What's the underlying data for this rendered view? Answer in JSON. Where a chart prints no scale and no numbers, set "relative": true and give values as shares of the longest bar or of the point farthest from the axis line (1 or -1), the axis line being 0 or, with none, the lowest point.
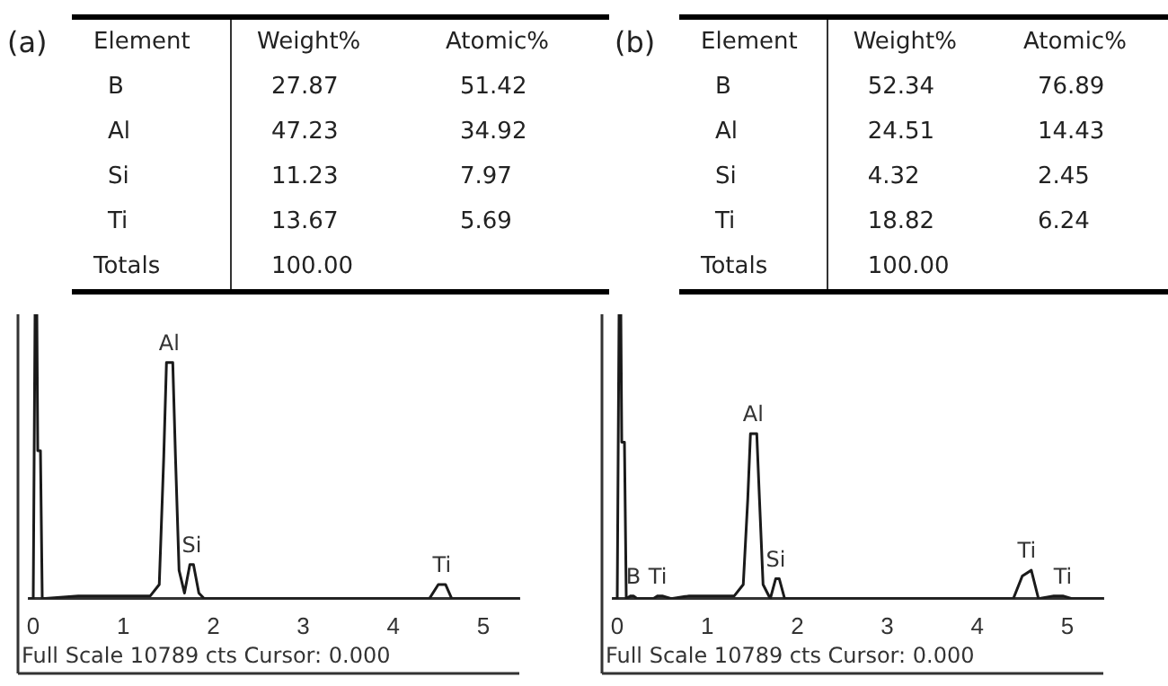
{
  "chart_data": [
    {
      "type": "other",
      "title": "(a)",
      "xlabel": "Element",
      "data_labels": true,
      "categories": [
        "B",
        "Al",
        "Si",
        "Ti",
        "Totals"
      ],
      "totals": [
        "100.00",
        null
      ],
      "series": [
        {
          "name": "Weight%",
          "values": [
            27.87,
            47.23,
            11.23,
            13.67,
            null
          ]
        },
        {
          "name": "Atomic%",
          "values": [
            51.42,
            34.92,
            7.97,
            5.69,
            null
          ]
        }
      ]
    },
    {
      "type": "line",
      "relative": true,
      "x": [
        -0.05,
        0,
        0.02,
        0.04,
        0.05,
        0.08,
        0.1,
        0.5,
        0.8,
        1.3,
        1.4,
        1.45,
        1.48,
        1.55,
        1.58,
        1.62,
        1.68,
        1.74,
        1.78,
        1.84,
        1.9,
        4.4,
        4.5,
        4.58,
        4.65,
        5.4
      ],
      "series": [
        {
          "color": "#1a1a1a",
          "values": [
            0,
            0,
            1,
            1,
            0.52,
            0.52,
            0,
            0.01,
            0.01,
            0.01,
            0.05,
            0.5,
            0.83,
            0.83,
            0.5,
            0.1,
            0.02,
            0.12,
            0.12,
            0.02,
            0,
            0,
            0.05,
            0.05,
            0,
            0
          ]
        }
      ],
      "xlim": [
        -0.05,
        5.4
      ],
      "xticks": [
        0,
        1,
        2,
        3,
        4,
        5
      ],
      "grid": false,
      "legend": false,
      "marker": "none",
      "annotations": [
        {
          "text": "Al",
          "x": 1.51,
          "y": 0.83
        },
        {
          "text": "Si",
          "x": 1.76,
          "y": 0.12
        },
        {
          "text": "Ti",
          "x": 4.54,
          "y": 0.05
        },
        "Full Scale 10789 cts Cursor: 0.000"
      ]
    },
    {
      "type": "other",
      "title": "(b)",
      "xlabel": "Element",
      "data_labels": true,
      "categories": [
        "B",
        "Al",
        "Si",
        "Ti",
        "Totals"
      ],
      "totals": [
        "100.00",
        null
      ],
      "series": [
        {
          "name": "Weight%",
          "values": [
            52.34,
            24.51,
            4.32,
            18.82,
            null
          ]
        },
        {
          "name": "Atomic%",
          "values": [
            76.89,
            14.43,
            2.45,
            6.24,
            null
          ]
        }
      ]
    },
    {
      "type": "line",
      "relative": true,
      "x": [
        -0.05,
        0,
        0.02,
        0.04,
        0.05,
        0.08,
        0.1,
        0.15,
        0.18,
        0.22,
        0.4,
        0.45,
        0.5,
        0.6,
        0.8,
        1.3,
        1.4,
        1.45,
        1.48,
        1.55,
        1.58,
        1.62,
        1.7,
        1.76,
        1.8,
        1.86,
        4.4,
        4.5,
        4.6,
        4.68,
        4.85,
        4.95,
        5.05,
        5.4
      ],
      "series": [
        {
          "color": "#1a1a1a",
          "values": [
            0,
            0,
            1,
            1,
            0.55,
            0.55,
            0,
            0.01,
            0.01,
            0,
            0,
            0.01,
            0.01,
            0,
            0.01,
            0.01,
            0.05,
            0.35,
            0.58,
            0.58,
            0.35,
            0.05,
            0,
            0.07,
            0.07,
            0,
            0,
            0.08,
            0.1,
            0,
            0.01,
            0.01,
            0,
            0
          ]
        }
      ],
      "xlim": [
        -0.05,
        5.4
      ],
      "xticks": [
        0,
        1,
        2,
        3,
        4,
        5
      ],
      "grid": false,
      "legend": false,
      "marker": "none",
      "annotations": [
        {
          "text": "B",
          "x": 0.18,
          "y": 0.01
        },
        {
          "text": "Ti",
          "x": 0.45,
          "y": 0.01
        },
        {
          "text": "Al",
          "x": 1.51,
          "y": 0.58
        },
        {
          "text": "Si",
          "x": 1.76,
          "y": 0.07
        },
        {
          "text": "Ti",
          "x": 4.55,
          "y": 0.1
        },
        {
          "text": "Ti",
          "x": 4.95,
          "y": 0.01
        },
        "Full Scale 10789 cts Cursor: 0.000"
      ]
    }
  ]
}
